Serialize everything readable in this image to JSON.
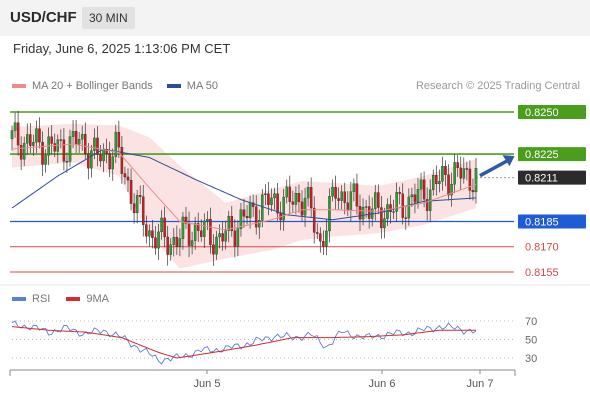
{
  "header": {
    "pair": "USD/CHF",
    "timeframe": "30 MIN"
  },
  "datetime": "Friday, June 6, 2025 1:13:06 PM CET",
  "legend": {
    "ma20": {
      "label": "MA 20 + Bollinger Bands",
      "color": "#f08a8a"
    },
    "ma50": {
      "label": "MA 50",
      "color": "#2b4c9a"
    }
  },
  "credit": "Research © 2025 Trading Central",
  "rsi_legend": {
    "rsi": {
      "label": "RSI",
      "color": "#5b7fd6"
    },
    "ma9": {
      "label": "9MA",
      "color": "#d62b2b"
    }
  },
  "chart_data": [
    {
      "type": "candlestick",
      "instrument": "USD/CHF",
      "timeframe": "30 MIN",
      "ylim": [
        0.814,
        0.827
      ],
      "x_tick_labels": [
        "Jun 5",
        "Jun 6",
        "Jun 7"
      ],
      "levels": [
        {
          "value": "0.8250",
          "kind": "resistance",
          "color": "#4a9e1c"
        },
        {
          "value": "0.8225",
          "kind": "resistance",
          "color": "#4a9e1c"
        },
        {
          "value": "0.8211",
          "kind": "last_price",
          "color": "#2b2b2b"
        },
        {
          "value": "0.8185",
          "kind": "pivot",
          "color": "#1f5bd6"
        },
        {
          "value": "0.8170",
          "kind": "support",
          "color": "#d84a4a"
        },
        {
          "value": "0.8155",
          "kind": "support",
          "color": "#d84a4a"
        }
      ],
      "close_anchors": [
        [
          0,
          0.8234
        ],
        [
          8,
          0.8231
        ],
        [
          15,
          0.8228
        ],
        [
          22,
          0.8233
        ],
        [
          28,
          0.8223
        ],
        [
          34,
          0.8228
        ],
        [
          40,
          0.8197
        ],
        [
          45,
          0.8178
        ],
        [
          52,
          0.8173
        ],
        [
          60,
          0.8181
        ],
        [
          68,
          0.8174
        ],
        [
          76,
          0.8187
        ],
        [
          84,
          0.8197
        ],
        [
          90,
          0.8196
        ],
        [
          96,
          0.82
        ],
        [
          101,
          0.8172
        ],
        [
          106,
          0.8203
        ],
        [
          112,
          0.8196
        ],
        [
          120,
          0.819
        ],
        [
          128,
          0.8195
        ],
        [
          136,
          0.8203
        ],
        [
          142,
          0.8212
        ],
        [
          148,
          0.8213
        ],
        [
          152,
          0.8211
        ]
      ],
      "ma20": [
        [
          0,
          0.8228
        ],
        [
          20,
          0.8231
        ],
        [
          35,
          0.8226
        ],
        [
          45,
          0.8205
        ],
        [
          55,
          0.8185
        ],
        [
          70,
          0.818
        ],
        [
          85,
          0.8186
        ],
        [
          95,
          0.8192
        ],
        [
          105,
          0.8192
        ],
        [
          120,
          0.8191
        ],
        [
          135,
          0.8196
        ],
        [
          152,
          0.8207
        ]
      ],
      "bollinger_upper": [
        [
          0,
          0.8241
        ],
        [
          20,
          0.8243
        ],
        [
          35,
          0.8242
        ],
        [
          45,
          0.8235
        ],
        [
          55,
          0.8218
        ],
        [
          70,
          0.8196
        ],
        [
          85,
          0.8204
        ],
        [
          95,
          0.8209
        ],
        [
          105,
          0.8208
        ],
        [
          120,
          0.8206
        ],
        [
          135,
          0.8212
        ],
        [
          152,
          0.8222
        ]
      ],
      "bollinger_lower": [
        [
          0,
          0.8217
        ],
        [
          20,
          0.822
        ],
        [
          35,
          0.8212
        ],
        [
          45,
          0.8178
        ],
        [
          55,
          0.8157
        ],
        [
          70,
          0.8163
        ],
        [
          85,
          0.8168
        ],
        [
          95,
          0.8174
        ],
        [
          105,
          0.8176
        ],
        [
          120,
          0.8178
        ],
        [
          135,
          0.8183
        ],
        [
          152,
          0.8193
        ]
      ],
      "ma50": [
        [
          0,
          0.8193
        ],
        [
          15,
          0.8212
        ],
        [
          30,
          0.8228
        ],
        [
          45,
          0.8223
        ],
        [
          60,
          0.821
        ],
        [
          75,
          0.8198
        ],
        [
          90,
          0.8189
        ],
        [
          105,
          0.8186
        ],
        [
          120,
          0.819
        ],
        [
          135,
          0.8197
        ],
        [
          152,
          0.8199
        ]
      ],
      "projection": {
        "from": [
          152,
          0.8211
        ],
        "to": [
          162,
          0.8225
        ],
        "direction": "up"
      }
    },
    {
      "type": "line",
      "name": "RSI",
      "ylim": [
        20,
        80
      ],
      "y_tick_labels": [
        "70",
        "50",
        "30"
      ],
      "rsi": [
        [
          0,
          66
        ],
        [
          6,
          64
        ],
        [
          12,
          58
        ],
        [
          18,
          62
        ],
        [
          24,
          56
        ],
        [
          30,
          60
        ],
        [
          36,
          52
        ],
        [
          42,
          40
        ],
        [
          48,
          28
        ],
        [
          54,
          30
        ],
        [
          62,
          38
        ],
        [
          70,
          40
        ],
        [
          78,
          46
        ],
        [
          86,
          54
        ],
        [
          92,
          52
        ],
        [
          98,
          55
        ],
        [
          103,
          42
        ],
        [
          108,
          58
        ],
        [
          116,
          52
        ],
        [
          124,
          56
        ],
        [
          132,
          58
        ],
        [
          140,
          64
        ],
        [
          146,
          62
        ],
        [
          152,
          58
        ]
      ],
      "ma9": [
        [
          0,
          64
        ],
        [
          12,
          60
        ],
        [
          24,
          58
        ],
        [
          36,
          52
        ],
        [
          48,
          36
        ],
        [
          54,
          30
        ],
        [
          66,
          36
        ],
        [
          80,
          44
        ],
        [
          92,
          52
        ],
        [
          104,
          52
        ],
        [
          116,
          53
        ],
        [
          128,
          55
        ],
        [
          140,
          60
        ],
        [
          152,
          60
        ]
      ]
    }
  ]
}
